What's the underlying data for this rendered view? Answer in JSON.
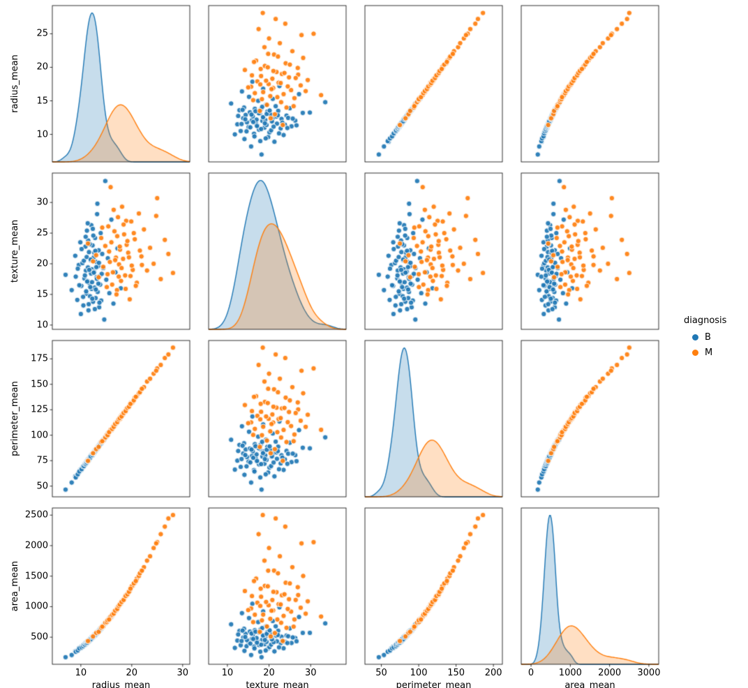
{
  "chart_data": {
    "type": "scatter",
    "kind": "pairplot",
    "diagonal": "kde",
    "hue": "diagnosis",
    "legend_title": "diagnosis",
    "columns": [
      "radius_mean",
      "texture_mean",
      "perimeter_mean",
      "area_mean"
    ],
    "variables": [
      {
        "name": "radius_mean",
        "label": "radius_mean",
        "xlim": [
          4.4,
          31.4
        ],
        "ylim": [
          5.9,
          29.2
        ],
        "xticks": [
          10,
          20,
          30
        ],
        "yticks": [
          10,
          15,
          20,
          25
        ]
      },
      {
        "name": "texture_mean",
        "label": "texture_mean",
        "xlim": [
          5.5,
          38.5
        ],
        "ylim": [
          9.3,
          34.8
        ],
        "xticks": [
          10,
          20,
          30
        ],
        "yticks": [
          10,
          15,
          20,
          25,
          30
        ]
      },
      {
        "name": "perimeter_mean",
        "label": "perimeter_mean",
        "xlim": [
          28,
          212
        ],
        "ylim": [
          39.5,
          193
        ],
        "xticks": [
          50,
          100,
          150,
          200
        ],
        "yticks": [
          50,
          75,
          100,
          125,
          150,
          175
        ]
      },
      {
        "name": "area_mean",
        "label": "area_mean",
        "xlim": [
          -250,
          3250
        ],
        "ylim": [
          56,
          2617
        ],
        "xticks": [
          0,
          1000,
          2000,
          3000
        ],
        "yticks": [
          500,
          1000,
          1500,
          2000,
          2500
        ]
      }
    ],
    "series": [
      {
        "name": "B",
        "color": "#1f77b4",
        "points": [
          [
            7.0,
            18.2,
            46.6,
            172
          ],
          [
            8.2,
            15.7,
            53.5,
            208
          ],
          [
            8.9,
            21.3,
            59.6,
            267
          ],
          [
            9.3,
            14.1,
            61.1,
            276
          ],
          [
            9.6,
            19.8,
            63.4,
            317
          ],
          [
            9.9,
            23.5,
            65.9,
            318
          ],
          [
            10.1,
            16.4,
            65.8,
            345
          ],
          [
            10.3,
            20.1,
            68.2,
            338
          ],
          [
            10.5,
            13.2,
            68.9,
            368
          ],
          [
            10.7,
            17.6,
            71.3,
            371
          ],
          [
            10.9,
            22.8,
            72.3,
            402
          ],
          [
            11.0,
            18.9,
            72.0,
            385
          ],
          [
            11.1,
            15.1,
            74.2,
            413
          ],
          [
            11.2,
            25.4,
            73.6,
            405
          ],
          [
            11.3,
            17.2,
            74.6,
            434
          ],
          [
            11.4,
            19.4,
            75.8,
            424
          ],
          [
            11.5,
            12.4,
            75.0,
            444
          ],
          [
            11.6,
            21.9,
            76.8,
            432
          ],
          [
            11.7,
            16.8,
            77.4,
            456
          ],
          [
            11.8,
            14.7,
            78.6,
            452
          ],
          [
            11.9,
            20.6,
            78.9,
            477
          ],
          [
            12.0,
            18.4,
            79.0,
            461
          ],
          [
            12.05,
            26.3,
            80.4,
            486
          ],
          [
            12.1,
            15.9,
            79.6,
            474
          ],
          [
            12.15,
            19.1,
            80.2,
            500
          ],
          [
            12.2,
            17.0,
            81.1,
            486
          ],
          [
            12.3,
            23.0,
            80.3,
            507
          ],
          [
            12.4,
            13.8,
            82.0,
            495
          ],
          [
            12.5,
            21.0,
            82.1,
            520
          ],
          [
            12.6,
            18.7,
            83.9,
            517
          ],
          [
            12.7,
            16.1,
            84.2,
            542
          ],
          [
            12.8,
            24.2,
            84.6,
            527
          ],
          [
            12.9,
            14.4,
            86.0,
            555
          ],
          [
            13.0,
            20.3,
            85.5,
            549
          ],
          [
            13.1,
            17.8,
            86.5,
            579
          ],
          [
            13.2,
            28.1,
            87.7,
            570
          ],
          [
            13.3,
            15.4,
            86.9,
            592
          ],
          [
            13.4,
            19.6,
            88.6,
            581
          ],
          [
            13.5,
            22.2,
            88.7,
            605
          ],
          [
            13.6,
            12.9,
            90.5,
            603
          ],
          [
            13.7,
            18.0,
            90.8,
            629
          ],
          [
            13.8,
            16.6,
            91.2,
            614
          ],
          [
            13.9,
            25.0,
            92.6,
            644
          ],
          [
            14.0,
            14.0,
            92.1,
            638
          ],
          [
            14.2,
            21.6,
            93.7,
            678
          ],
          [
            14.4,
            19.3,
            95.6,
            679
          ],
          [
            14.6,
            10.9,
            95.5,
            711
          ],
          [
            14.8,
            33.5,
            97.9,
            726
          ],
          [
            15.0,
            17.4,
            98.6,
            747
          ],
          [
            15.3,
            20.9,
            101.7,
            765
          ],
          [
            15.6,
            15.2,
            103.4,
            813
          ],
          [
            16.0,
            27.2,
            105.0,
            831
          ],
          [
            16.4,
            13.5,
            108.8,
            894
          ],
          [
            16.8,
            18.6,
            110.6,
            922
          ],
          [
            17.2,
            22.5,
            113.5,
            989
          ],
          [
            17.85,
            16.0,
            118.4,
            1047
          ],
          [
            9.0,
            17.9,
            58.5,
            262
          ],
          [
            10.0,
            11.8,
            66.2,
            324
          ],
          [
            12.45,
            24.6,
            81.8,
            515
          ],
          [
            11.45,
            23.8,
            76.3,
            426
          ],
          [
            9.4,
            19.2,
            61.6,
            282
          ],
          [
            9.7,
            16.5,
            64.4,
            316
          ],
          [
            10.15,
            22.4,
            66.6,
            334
          ],
          [
            10.45,
            14.6,
            69.4,
            352
          ],
          [
            10.6,
            20.5,
            69.7,
            378
          ],
          [
            10.8,
            18.1,
            71.6,
            377
          ],
          [
            10.95,
            24.4,
            71.9,
            404
          ],
          [
            11.05,
            15.5,
            73.3,
            395
          ],
          [
            11.15,
            21.1,
            73.2,
            418
          ],
          [
            11.25,
            17.1,
            74.7,
            410
          ],
          [
            11.35,
            26.6,
            74.5,
            433
          ],
          [
            11.55,
            13.4,
            76.6,
            437
          ],
          [
            11.65,
            19.0,
            76.5,
            455
          ],
          [
            11.75,
            23.2,
            78.0,
            448
          ],
          [
            11.85,
            16.2,
            77.8,
            471
          ],
          [
            11.95,
            20.7,
            79.3,
            464
          ],
          [
            12.25,
            14.3,
            80.5,
            503
          ],
          [
            12.35,
            25.7,
            81.9,
            496
          ],
          [
            12.55,
            18.55,
            82.4,
            528
          ],
          [
            12.65,
            21.8,
            83.1,
            521
          ],
          [
            12.75,
            12.6,
            84.5,
            544
          ],
          [
            12.85,
            22.1,
            84.4,
            537
          ],
          [
            12.95,
            15.8,
            85.9,
            561
          ],
          [
            13.05,
            19.45,
            85.7,
            554
          ],
          [
            13.15,
            17.55,
            87.2,
            578
          ],
          [
            13.25,
            29.8,
            87.1,
            571
          ],
          [
            13.45,
            16.75,
            89.2,
            589
          ],
          [
            13.55,
            20.15,
            89.0,
            612
          ],
          [
            13.65,
            13.65,
            89.7,
            608
          ],
          [
            14.1,
            18.35,
            93.5,
            649
          ]
        ]
      },
      {
        "name": "M",
        "color": "#ff7f0e",
        "points": [
          [
            13.0,
            21.4,
            86.3,
            568
          ],
          [
            13.5,
            17.8,
            88.5,
            587
          ],
          [
            14.0,
            24.2,
            93.3,
            653
          ],
          [
            14.4,
            19.5,
            94.7,
            675
          ],
          [
            14.8,
            22.9,
            97.7,
            736
          ],
          [
            15.1,
            16.2,
            100.3,
            747
          ],
          [
            15.4,
            26.1,
            100.7,
            791
          ],
          [
            15.7,
            20.3,
            103.8,
            801
          ],
          [
            16.0,
            23.5,
            105.2,
            849
          ],
          [
            16.3,
            18.6,
            108.3,
            870
          ],
          [
            16.6,
            25.3,
            109.0,
            919
          ],
          [
            16.9,
            21.0,
            112.4,
            938
          ],
          [
            17.1,
            15.7,
            112.6,
            971
          ],
          [
            17.3,
            27.6,
            114.2,
            983
          ],
          [
            17.5,
            19.9,
            116.1,
            1023
          ],
          [
            17.7,
            22.3,
            115.9,
            1041
          ],
          [
            17.9,
            17.2,
            119.0,
            1065
          ],
          [
            18.1,
            29.3,
            120.1,
            1088
          ],
          [
            18.3,
            20.8,
            120.4,
            1109
          ],
          [
            18.5,
            24.8,
            122.8,
            1122
          ],
          [
            18.7,
            18.1,
            123.0,
            1162
          ],
          [
            19.0,
            23.1,
            126.3,
            1186
          ],
          [
            19.3,
            21.8,
            127.0,
            1237
          ],
          [
            19.6,
            14.2,
            129.6,
            1256
          ],
          [
            19.9,
            26.9,
            132.2,
            1319
          ],
          [
            20.2,
            19.0,
            132.7,
            1341
          ],
          [
            20.6,
            24.0,
            136.9,
            1392
          ],
          [
            21.0,
            16.9,
            138.3,
            1459
          ],
          [
            21.4,
            28.2,
            141.2,
            1503
          ],
          [
            21.9,
            21.2,
            145.1,
            1591
          ],
          [
            22.4,
            25.6,
            147.2,
            1647
          ],
          [
            23.0,
            18.9,
            152.7,
            1754
          ],
          [
            23.6,
            22.6,
            155.5,
            1826
          ],
          [
            24.3,
            20.0,
            160.4,
            1961
          ],
          [
            25.0,
            30.7,
            165.6,
            2057
          ],
          [
            25.7,
            17.5,
            169.0,
            2188
          ],
          [
            26.5,
            23.9,
            175.8,
            2312
          ],
          [
            27.2,
            21.6,
            179.3,
            2445
          ],
          [
            28.1,
            18.5,
            186.0,
            2501
          ],
          [
            15.85,
            32.5,
            105.3,
            838
          ],
          [
            17.0,
            15.0,
            111.8,
            944
          ],
          [
            18.9,
            27.0,
            125.3,
            1190
          ],
          [
            20.0,
            19.7,
            131.6,
            1333
          ],
          [
            11.4,
            23.3,
            74.8,
            437
          ],
          [
            12.4,
            20.4,
            82.3,
            512
          ],
          [
            14.2,
            25.9,
            94.1,
            672
          ],
          [
            15.25,
            18.3,
            100.0,
            775
          ],
          [
            15.55,
            22.0,
            103.0,
            790
          ],
          [
            16.15,
            16.6,
            106.2,
            868
          ],
          [
            16.45,
            28.8,
            108.2,
            885
          ],
          [
            16.75,
            20.6,
            111.0,
            933
          ],
          [
            17.15,
            24.5,
            112.8,
            962
          ],
          [
            17.45,
            17.9,
            115.6,
            1012
          ],
          [
            17.65,
            22.8,
            116.8,
            1036
          ],
          [
            18.0,
            19.3,
            118.4,
            1077
          ],
          [
            18.4,
            26.4,
            121.8,
            1110
          ],
          [
            18.8,
            15.9,
            123.7,
            1174
          ],
          [
            19.15,
            23.7,
            126.8,
            1203
          ],
          [
            19.45,
            21.05,
            128.0,
            1243
          ],
          [
            19.75,
            18.0,
            130.8,
            1295
          ],
          [
            20.4,
            25.0,
            134.2,
            1381
          ],
          [
            20.8,
            16.4,
            137.7,
            1420
          ],
          [
            21.6,
            22.15,
            142.2,
            1547
          ],
          [
            22.0,
            19.8,
            145.6,
            1590
          ],
          [
            24.8,
            27.8,
            163.3,
            2037
          ]
        ]
      }
    ]
  }
}
